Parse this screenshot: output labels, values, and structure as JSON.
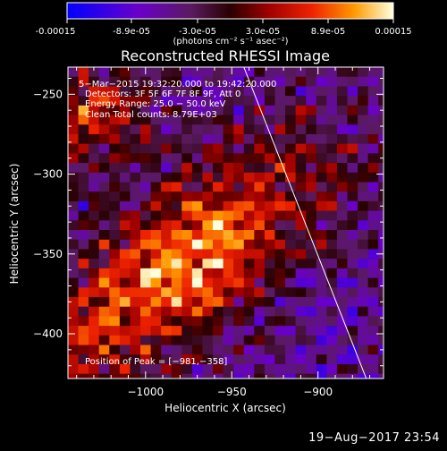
{
  "colorbar": {
    "tick_labels": [
      "-0.00015",
      "-8.9e-05",
      "-3.0e-05",
      "3.0e-05",
      "8.9e-05",
      "0.00015"
    ],
    "min": -0.00015,
    "max": 0.00015,
    "unit_label": "(photons cm⁻² s⁻¹ asec⁻²)"
  },
  "chart_data": {
    "type": "heatmap",
    "title": "Reconstructed RHESSI Image",
    "xlabel": "Heliocentric X (arcsec)",
    "ylabel": "Heliocentric Y (arcsec)",
    "xlim": [
      -1045,
      -862
    ],
    "ylim": [
      -428,
      -233
    ],
    "x_ticks": [
      -1000,
      -950,
      -900
    ],
    "x_tick_labels": [
      "−1000",
      "−950",
      "−900"
    ],
    "y_ticks": [
      -250,
      -300,
      -350,
      -400
    ],
    "y_tick_labels": [
      "−250",
      "−300",
      "−350",
      "−400"
    ],
    "annotations": [
      "5−Mar−2015 19:32:20.000 to 19:42:20.000",
      "Detectors: 3F 5F 6F 7F 8F 9F, Att 0",
      "Energy Range: 25.0 − 50.0 keV",
      "Clean    Total counts: 8.79E+03"
    ],
    "peak_label": "Position of Peak = [−981,−358]",
    "peak": [
      -981,
      -358
    ],
    "limb_line": [
      [
        -943,
        -233
      ],
      [
        -872,
        -428
      ]
    ]
  },
  "footer": {
    "date": "19−Aug−2017 23:54"
  },
  "colors": {
    "background": "#000000",
    "text": "#ffffff"
  }
}
